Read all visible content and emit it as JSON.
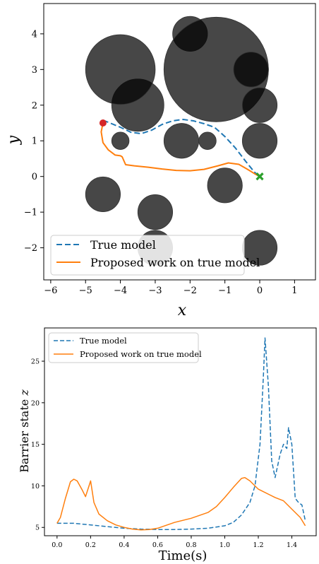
{
  "chart_data": [
    {
      "type": "scatter",
      "xlabel": "x",
      "ylabel": "y",
      "xlim": [
        -6.2,
        1.6
      ],
      "ylim": [
        -2.9,
        4.85
      ],
      "xticks": [
        -6,
        -5,
        -4,
        -3,
        -2,
        -1,
        0,
        1
      ],
      "yticks": [
        -2,
        -1,
        0,
        1,
        2,
        3,
        4
      ],
      "obstacles": [
        {
          "x": -3.5,
          "y": 2.0,
          "r": 0.75
        },
        {
          "x": -4.0,
          "y": 3.0,
          "r": 1.0
        },
        {
          "x": -2.0,
          "y": 4.0,
          "r": 0.5
        },
        {
          "x": -1.25,
          "y": 3.0,
          "r": 1.5
        },
        {
          "x": -0.25,
          "y": 3.0,
          "r": 0.5
        },
        {
          "x": 0.0,
          "y": 2.0,
          "r": 0.5
        },
        {
          "x": -4.0,
          "y": 1.0,
          "r": 0.25
        },
        {
          "x": -2.25,
          "y": 1.0,
          "r": 0.5
        },
        {
          "x": -1.5,
          "y": 1.0,
          "r": 0.25
        },
        {
          "x": 0.0,
          "y": 1.0,
          "r": 0.5
        },
        {
          "x": -1.0,
          "y": -0.25,
          "r": 0.5
        },
        {
          "x": -4.5,
          "y": -0.5,
          "r": 0.5
        },
        {
          "x": -3.0,
          "y": -1.0,
          "r": 0.5
        },
        {
          "x": -3.0,
          "y": -2.0,
          "r": 0.5
        },
        {
          "x": 0.0,
          "y": -2.0,
          "r": 0.5
        }
      ],
      "start": {
        "x": -4.5,
        "y": 1.5
      },
      "goal": {
        "x": 0.0,
        "y": 0.0
      },
      "series": [
        {
          "name": "True model",
          "color": "#1f77b4",
          "style": "dashed",
          "x": [
            -4.5,
            -4.3,
            -4.0,
            -3.7,
            -3.4,
            -3.1,
            -2.8,
            -2.5,
            -2.2,
            -1.9,
            -1.6,
            -1.3,
            -1.0,
            -0.7,
            -0.4,
            -0.15,
            0.0
          ],
          "y": [
            1.58,
            1.5,
            1.38,
            1.24,
            1.2,
            1.3,
            1.46,
            1.56,
            1.6,
            1.56,
            1.48,
            1.38,
            1.12,
            0.8,
            0.42,
            0.12,
            0.0
          ]
        },
        {
          "name": "Proposed work on true model",
          "color": "#ff7f0e",
          "style": "solid",
          "x": [
            -4.5,
            -4.55,
            -4.5,
            -4.35,
            -4.15,
            -4.0,
            -3.95,
            -3.85,
            -3.6,
            -3.2,
            -2.8,
            -2.4,
            -2.0,
            -1.6,
            -1.2,
            -0.9,
            -0.6,
            -0.35,
            -0.15,
            0.0
          ],
          "y": [
            1.5,
            1.25,
            0.95,
            0.75,
            0.6,
            0.58,
            0.55,
            0.33,
            0.3,
            0.26,
            0.21,
            0.17,
            0.16,
            0.2,
            0.3,
            0.38,
            0.34,
            0.2,
            0.08,
            0.0
          ]
        }
      ],
      "legend": "lower-left"
    },
    {
      "type": "line",
      "xlabel": "Time(s)",
      "ylabel": "Barrier state",
      "ylabel_var": "z",
      "xlim": [
        -0.075,
        1.545
      ],
      "ylim": [
        4.0,
        29.0
      ],
      "xticks": [
        "0.0",
        "0.2",
        "0.4",
        "0.6",
        "0.8",
        "1.0",
        "1.2",
        "1.4"
      ],
      "yticks": [
        "5",
        "10",
        "15",
        "20",
        "25"
      ],
      "series": [
        {
          "name": "True model",
          "color": "#1f77b4",
          "style": "dashed",
          "x": [
            0.0,
            0.1,
            0.2,
            0.3,
            0.4,
            0.5,
            0.6,
            0.7,
            0.8,
            0.9,
            1.0,
            1.05,
            1.1,
            1.15,
            1.18,
            1.21,
            1.23,
            1.24,
            1.26,
            1.28,
            1.3,
            1.33,
            1.35,
            1.37,
            1.38,
            1.4,
            1.42,
            1.44,
            1.46,
            1.48
          ],
          "y": [
            5.5,
            5.5,
            5.3,
            5.1,
            4.9,
            4.8,
            4.75,
            4.75,
            4.8,
            4.9,
            5.2,
            5.6,
            6.5,
            8.0,
            10.0,
            15.0,
            23.0,
            27.8,
            22.0,
            13.0,
            11.0,
            13.8,
            15.0,
            14.5,
            17.0,
            15.0,
            8.5,
            8.0,
            7.7,
            5.8
          ]
        },
        {
          "name": "Proposed work on true model",
          "color": "#ff7f0e",
          "style": "solid",
          "x": [
            0.0,
            0.02,
            0.05,
            0.08,
            0.1,
            0.12,
            0.15,
            0.17,
            0.2,
            0.22,
            0.25,
            0.3,
            0.35,
            0.4,
            0.45,
            0.5,
            0.55,
            0.6,
            0.7,
            0.8,
            0.9,
            0.95,
            1.0,
            1.05,
            1.1,
            1.12,
            1.15,
            1.2,
            1.3,
            1.35,
            1.4,
            1.45,
            1.48
          ],
          "y": [
            5.5,
            6.2,
            8.5,
            10.5,
            10.8,
            10.6,
            9.5,
            8.7,
            10.6,
            8.0,
            6.6,
            5.8,
            5.3,
            5.0,
            4.8,
            4.7,
            4.75,
            4.9,
            5.6,
            6.1,
            6.8,
            7.5,
            8.6,
            9.8,
            10.9,
            11.0,
            10.6,
            9.6,
            8.6,
            8.2,
            7.2,
            6.2,
            5.2
          ]
        }
      ],
      "legend": "top-left"
    }
  ],
  "legend_labels": {
    "true_model": "True model",
    "proposed": "Proposed work on true model"
  },
  "colors": {
    "obstacle": "#000000",
    "true_model": "#1f77b4",
    "proposed": "#ff7f0e",
    "start": "#d62728",
    "goal": "#2ca02c"
  }
}
